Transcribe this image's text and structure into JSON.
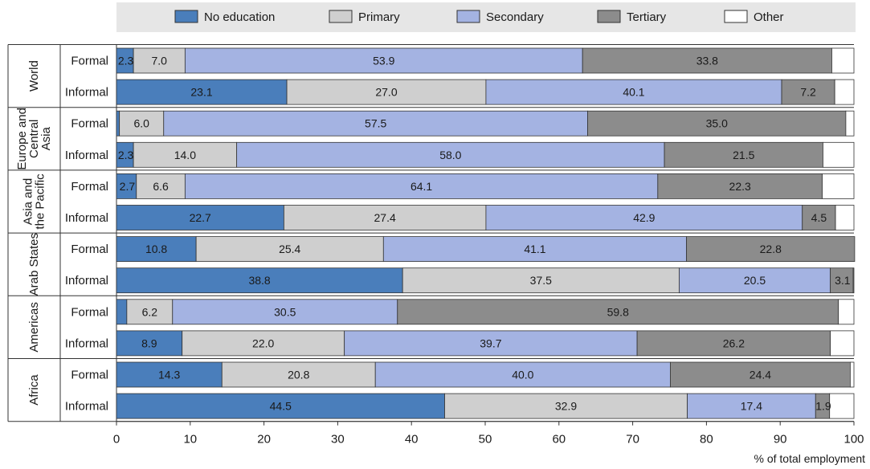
{
  "chart_data": {
    "type": "bar",
    "orientation": "horizontal-stacked",
    "legend_position": "top",
    "grid": false,
    "xlabel": "% of total employment",
    "xlim": [
      0,
      100
    ],
    "x_ticks": [
      "0",
      "10",
      "20",
      "30",
      "40",
      "50",
      "60",
      "70",
      "80",
      "90",
      "100"
    ],
    "categories": [
      {
        "region": "World",
        "row": "Formal"
      },
      {
        "region": "World",
        "row": "Informal"
      },
      {
        "region": "Europe and Central Asia",
        "row": "Formal"
      },
      {
        "region": "Europe and Central Asia",
        "row": "Informal"
      },
      {
        "region": "Asia and the Pacific",
        "row": "Formal"
      },
      {
        "region": "Asia and the Pacific",
        "row": "Informal"
      },
      {
        "region": "Arab States",
        "row": "Formal"
      },
      {
        "region": "Arab States",
        "row": "Informal"
      },
      {
        "region": "Americas",
        "row": "Formal"
      },
      {
        "region": "Americas",
        "row": "Informal"
      },
      {
        "region": "Africa",
        "row": "Formal"
      },
      {
        "region": "Africa",
        "row": "Informal"
      }
    ],
    "regions": [
      {
        "name": "World",
        "lines": [
          "World"
        ]
      },
      {
        "name": "Europe and Central Asia",
        "lines": [
          "Europe and",
          "Central",
          "Asia"
        ]
      },
      {
        "name": "Asia and the Pacific",
        "lines": [
          "Asia and",
          "the Pacific"
        ]
      },
      {
        "name": "Arab States",
        "lines": [
          "Arab States"
        ]
      },
      {
        "name": "Americas",
        "lines": [
          "Americas"
        ]
      },
      {
        "name": "Africa",
        "lines": [
          "Africa"
        ]
      }
    ],
    "series": [
      {
        "name": "No education",
        "color": "#4a7ebb",
        "values": [
          2.3,
          23.1,
          0.4,
          2.3,
          2.7,
          22.7,
          10.8,
          38.8,
          1.4,
          8.9,
          14.3,
          44.5
        ],
        "labels": [
          "2.3",
          "23.1",
          "",
          "2.3",
          "2.7",
          "22.7",
          "10.8",
          "38.8",
          "",
          "8.9",
          "14.3",
          "44.5"
        ]
      },
      {
        "name": "Primary",
        "color": "#cfcfcf",
        "values": [
          7.0,
          27.0,
          6.0,
          14.0,
          6.6,
          27.4,
          25.4,
          37.5,
          6.2,
          22.0,
          20.8,
          32.9
        ],
        "labels": [
          "7.0",
          "27.0",
          "6.0",
          "14.0",
          "6.6",
          "27.4",
          "25.4",
          "37.5",
          "6.2",
          "22.0",
          "20.8",
          "32.9"
        ]
      },
      {
        "name": "Secondary",
        "color": "#a4b3e2",
        "values": [
          53.9,
          40.1,
          57.5,
          58.0,
          64.1,
          42.9,
          41.1,
          20.5,
          30.5,
          39.7,
          40.0,
          17.4
        ],
        "labels": [
          "53.9",
          "40.1",
          "57.5",
          "58.0",
          "64.1",
          "42.9",
          "41.1",
          "20.5",
          "30.5",
          "39.7",
          "40.0",
          "17.4"
        ]
      },
      {
        "name": "Tertiary",
        "color": "#8c8c8c",
        "values": [
          33.8,
          7.2,
          35.0,
          21.5,
          22.3,
          4.5,
          22.8,
          3.1,
          59.8,
          26.2,
          24.4,
          1.9
        ],
        "labels": [
          "33.8",
          "7.2",
          "35.0",
          "21.5",
          "22.3",
          "4.5",
          "22.8",
          "3.1",
          "59.8",
          "26.2",
          "24.4",
          "1.9"
        ]
      },
      {
        "name": "Other",
        "color": "#ffffff",
        "values": [
          3.0,
          2.6,
          1.1,
          4.2,
          4.3,
          2.5,
          0.0,
          0.1,
          2.1,
          3.2,
          0.5,
          3.3
        ],
        "labels": [
          "",
          "",
          "",
          "",
          "",
          "",
          "",
          "",
          "",
          "",
          "",
          ""
        ]
      }
    ]
  }
}
